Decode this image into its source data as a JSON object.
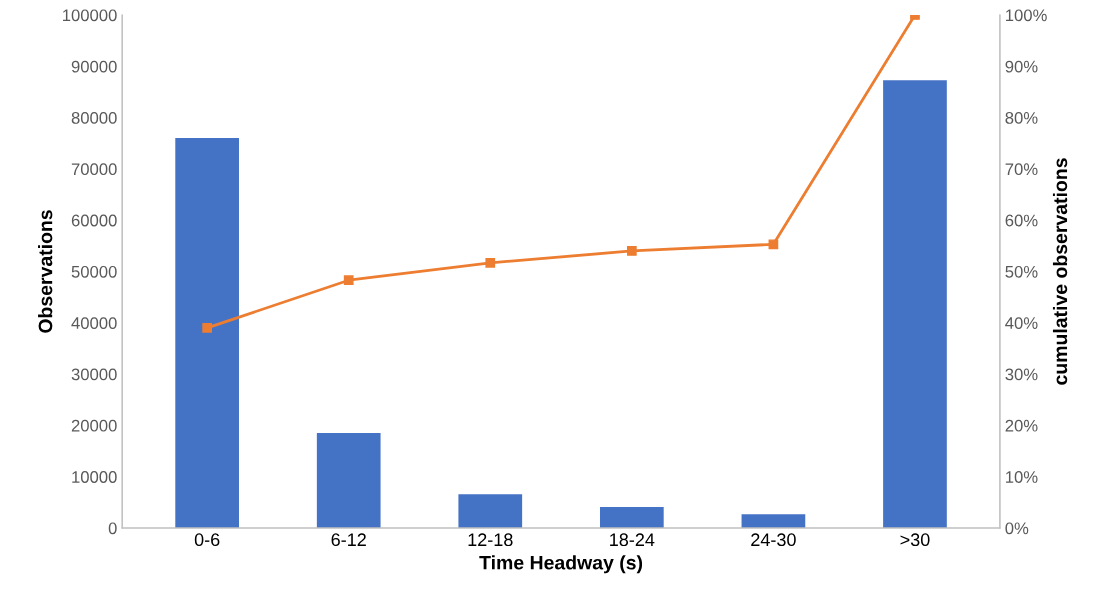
{
  "chart_data": {
    "type": "bar",
    "categories": [
      "0-6",
      "6-12",
      "12-18",
      "18-24",
      "24-30",
      ">30"
    ],
    "xlabel": "Time Headway (s)",
    "ylabel": "Observations",
    "y2label": "cumulative observations",
    "series": [
      {
        "color": "#4472c4",
        "values": [
          76000,
          18500,
          6600,
          4100,
          2700,
          87300
        ]
      },
      {
        "type": "line",
        "axis": "y2",
        "color": "#ed7d31",
        "marker": "square",
        "values": [
          39.0,
          48.3,
          51.7,
          54.0,
          55.3,
          100
        ]
      }
    ],
    "ylim": [
      0,
      100000
    ],
    "yticks": [
      0,
      10000,
      20000,
      30000,
      40000,
      50000,
      60000,
      70000,
      80000,
      90000,
      100000
    ],
    "y2lim": [
      0,
      100
    ],
    "y2ticks": [
      {
        "value": 0,
        "label": "0%"
      },
      {
        "value": 10,
        "label": "10%"
      },
      {
        "value": 20,
        "label": "20%"
      },
      {
        "value": 30,
        "label": "30%"
      },
      {
        "value": 40,
        "label": "40%"
      },
      {
        "value": 50,
        "label": "50%"
      },
      {
        "value": 60,
        "label": "60%"
      },
      {
        "value": 70,
        "label": "70%"
      },
      {
        "value": 80,
        "label": "80%"
      },
      {
        "value": 90,
        "label": "90%"
      },
      {
        "value": 100,
        "label": "100%"
      }
    ],
    "grid": false
  }
}
